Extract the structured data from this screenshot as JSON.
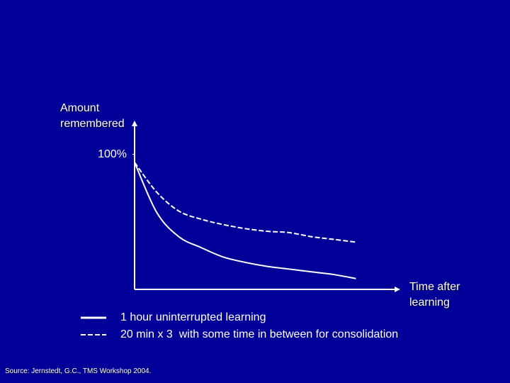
{
  "chart_data": {
    "type": "line",
    "ylabel": "Amount remembered",
    "xlabel": "Time after learning",
    "source": "Source: Jernstedt, G.C., TMS Workshop 2004.",
    "x": [
      0,
      1,
      2,
      3,
      4,
      5,
      6,
      7,
      8,
      9,
      10
    ],
    "xlim": [
      0,
      12
    ],
    "ylim": [
      0,
      125
    ],
    "yticks": [
      {
        "value": 100,
        "label": "100%"
      }
    ],
    "series": [
      {
        "name": "1 hour uninterrupted learning",
        "color": "#ffffff",
        "style": "solid",
        "values": [
          94,
          57,
          39,
          31,
          24,
          20,
          17,
          15,
          13,
          11,
          8
        ]
      },
      {
        "name": "20 min x 3  with some time in between for consolidation",
        "color": "#ffffff",
        "style": "dashed",
        "values": [
          94,
          72,
          58,
          52,
          48,
          45,
          43,
          42,
          39,
          37,
          35
        ]
      }
    ]
  }
}
